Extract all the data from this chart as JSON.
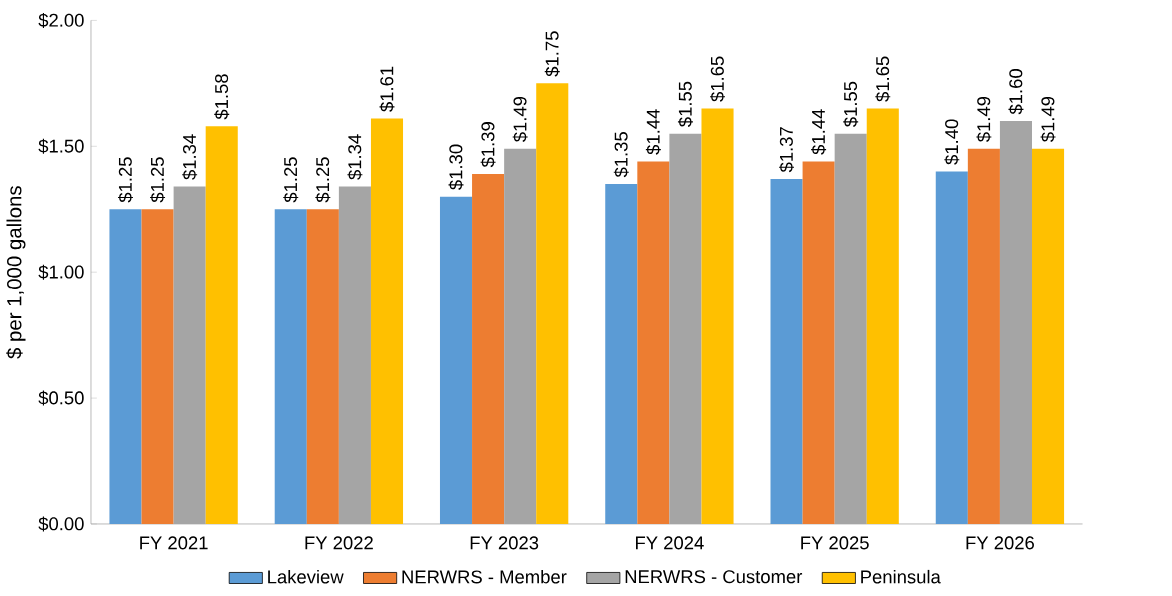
{
  "chart_data": {
    "type": "bar",
    "ylabel": "$ per 1,000 gallons",
    "categories": [
      "FY 2021",
      "FY 2022",
      "FY 2023",
      "FY 2024",
      "FY 2025",
      "FY 2026"
    ],
    "series": [
      {
        "name": "Lakeview",
        "color": "#5b9bd5",
        "values": [
          1.25,
          1.25,
          1.3,
          1.35,
          1.37,
          1.4
        ],
        "value_labels": [
          "$1.25",
          "$1.25",
          "$1.30",
          "$1.35",
          "$1.37",
          "$1.40"
        ]
      },
      {
        "name": "NERWRS - Member",
        "color": "#ed7d31",
        "values": [
          1.25,
          1.25,
          1.39,
          1.44,
          1.44,
          1.49
        ],
        "value_labels": [
          "$1.25",
          "$1.25",
          "$1.39",
          "$1.44",
          "$1.44",
          "$1.49"
        ]
      },
      {
        "name": "NERWRS - Customer",
        "color": "#a5a5a5",
        "values": [
          1.34,
          1.34,
          1.49,
          1.55,
          1.55,
          1.6
        ],
        "value_labels": [
          "$1.34",
          "$1.34",
          "$1.49",
          "$1.55",
          "$1.55",
          "$1.60"
        ]
      },
      {
        "name": "Peninsula",
        "color": "#ffc000",
        "values": [
          1.58,
          1.61,
          1.75,
          1.65,
          1.65,
          1.49
        ],
        "value_labels": [
          "$1.58",
          "$1.61",
          "$1.75",
          "$1.65",
          "$1.65",
          "$1.49"
        ]
      }
    ],
    "ylim": [
      0,
      2
    ],
    "yticks": [
      {
        "value": 0,
        "label": "$0.00"
      },
      {
        "value": 0.5,
        "label": "$0.50"
      },
      {
        "value": 1,
        "label": "$1.00"
      },
      {
        "value": 1.5,
        "label": "$1.50"
      },
      {
        "value": 2,
        "label": "$2.00"
      }
    ],
    "legend": "bottom"
  }
}
